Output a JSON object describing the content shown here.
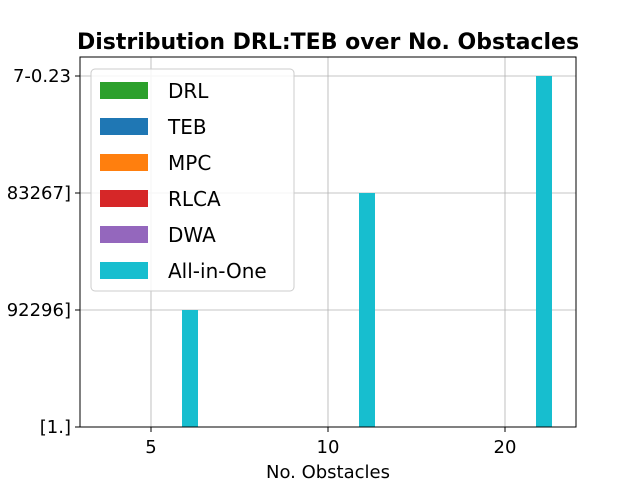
{
  "chart_data": {
    "type": "bar",
    "title": "Distribution DRL:TEB over No. Obstacles",
    "xlabel": "No. Obstacles",
    "ylabel": "",
    "categories": [
      "5",
      "10",
      "20"
    ],
    "y_ticks": [
      "[1.]",
      "92296]",
      "83267]",
      "7-0.23"
    ],
    "grid": true,
    "legend_position": "upper-left",
    "series": [
      {
        "name": "DRL",
        "color": "#2ca02c",
        "values": [
          0,
          0,
          0
        ]
      },
      {
        "name": "TEB",
        "color": "#1f77b4",
        "values": [
          0,
          0,
          0
        ]
      },
      {
        "name": "MPC",
        "color": "#ff7f0e",
        "values": [
          0,
          0,
          0
        ]
      },
      {
        "name": "RLCA",
        "color": "#d62728",
        "values": [
          0,
          0,
          0
        ]
      },
      {
        "name": "DWA",
        "color": "#9467bd",
        "values": [
          0,
          0,
          0
        ]
      },
      {
        "name": "All-in-One",
        "color": "#17becf",
        "values": [
          1,
          2,
          3
        ]
      }
    ]
  }
}
